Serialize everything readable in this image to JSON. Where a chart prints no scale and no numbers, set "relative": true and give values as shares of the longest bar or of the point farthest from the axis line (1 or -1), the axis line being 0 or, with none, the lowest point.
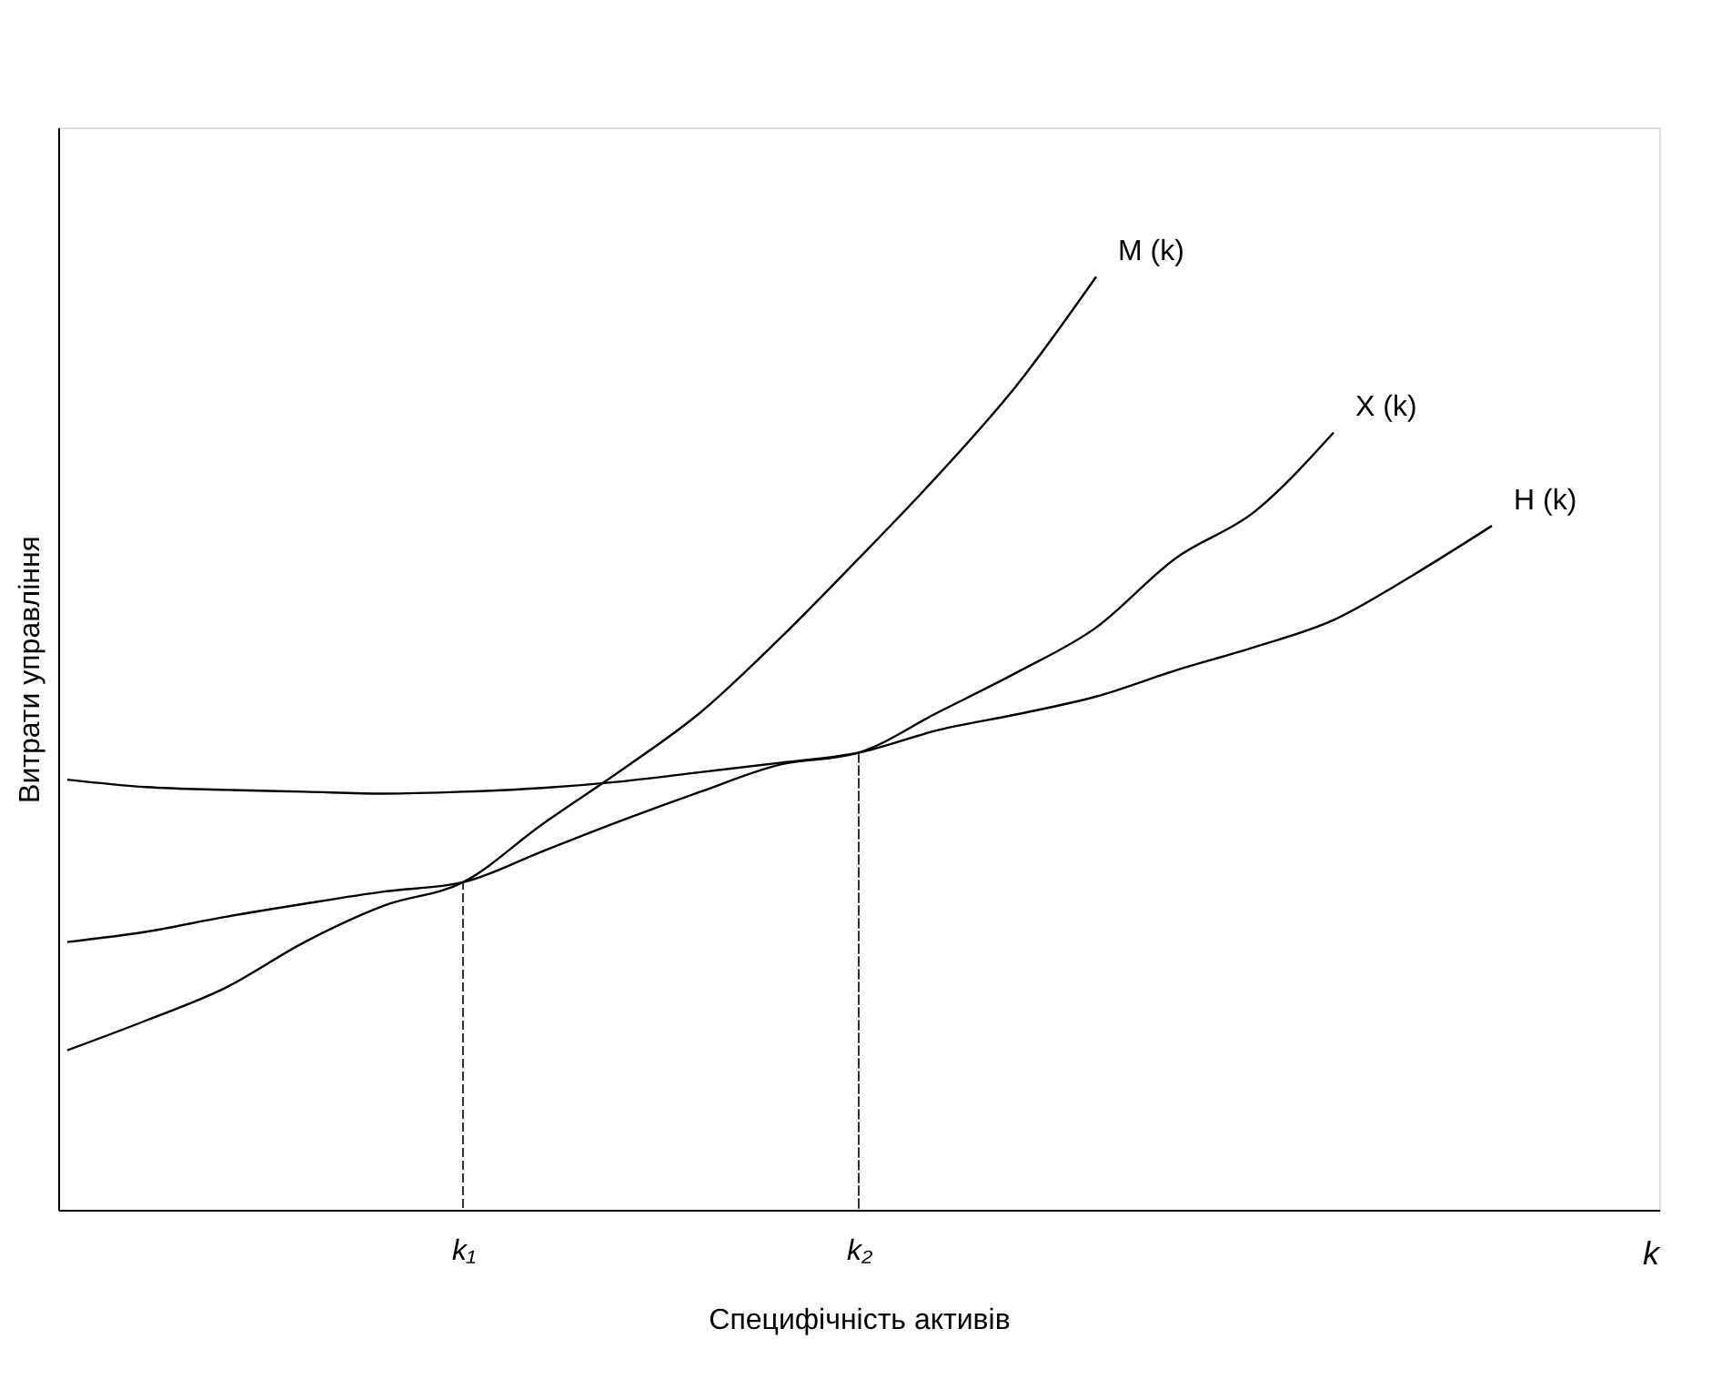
{
  "chart_data": {
    "type": "line",
    "relative": true,
    "xlabel": "Специфічність активів",
    "ylabel": "Витрати управління",
    "grid": false,
    "legend": false,
    "marker": "none",
    "annotations": [
      "k"
    ],
    "categories": [
      null,
      null,
      null,
      null,
      null,
      "k₁",
      null,
      null,
      null,
      null,
      "k₂",
      null,
      null,
      null,
      null,
      null,
      null,
      null,
      null,
      null,
      null
    ],
    "series": [
      {
        "name": "M (k)",
        "color": "#000000",
        "values": [
          0.171,
          0.203,
          0.238,
          0.287,
          0.326,
          0.351,
          0.413,
          0.471,
          0.533,
          0.612,
          0.698,
          0.787,
          0.884,
          1.0,
          null,
          null,
          null,
          null,
          null,
          null,
          null
        ]
      },
      {
        "name": "X (k)",
        "color": "#000000",
        "values": [
          0.287,
          0.298,
          0.314,
          0.328,
          0.341,
          0.351,
          0.384,
          0.417,
          0.448,
          0.477,
          0.49,
          0.533,
          0.576,
          0.624,
          0.698,
          0.748,
          0.833,
          null,
          null,
          null,
          null
        ]
      },
      {
        "name": "H (k)",
        "color": "#000000",
        "values": [
          0.461,
          0.453,
          0.45,
          0.448,
          0.446,
          0.448,
          0.452,
          0.459,
          0.469,
          0.479,
          0.49,
          0.514,
          0.531,
          0.55,
          0.578,
          0.603,
          0.632,
          0.68,
          0.733,
          null,
          null
        ]
      },
      {
        "type": "bar",
        "color": "#000000",
        "line_style": "dashed",
        "values": [
          null,
          null,
          null,
          null,
          null,
          0.351,
          null,
          null,
          null,
          null,
          0.49,
          null,
          null,
          null,
          null,
          null,
          null,
          null,
          null,
          null,
          null
        ]
      }
    ]
  }
}
